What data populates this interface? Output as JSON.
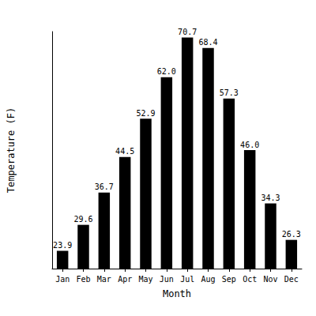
{
  "chart_data": {
    "type": "bar",
    "x_label": "Month",
    "y_label": "Temperature (F)",
    "categories": [
      "Jan",
      "Feb",
      "Mar",
      "Apr",
      "May",
      "Jun",
      "Jul",
      "Aug",
      "Sep",
      "Oct",
      "Nov",
      "Dec"
    ],
    "values": [
      23.9,
      29.6,
      36.7,
      44.5,
      52.9,
      62.0,
      70.7,
      68.4,
      57.3,
      46.0,
      34.3,
      26.3
    ],
    "value_labels": [
      "23.9",
      "29.6",
      "36.7",
      "44.5",
      "52.9",
      "62.0",
      "70.7",
      "68.4",
      "57.3",
      "46.0",
      "34.3",
      "26.3"
    ],
    "color": "#000000",
    "ylim": [
      20,
      72
    ],
    "grid": false,
    "data_labels": true,
    "tick_labels": "x"
  }
}
